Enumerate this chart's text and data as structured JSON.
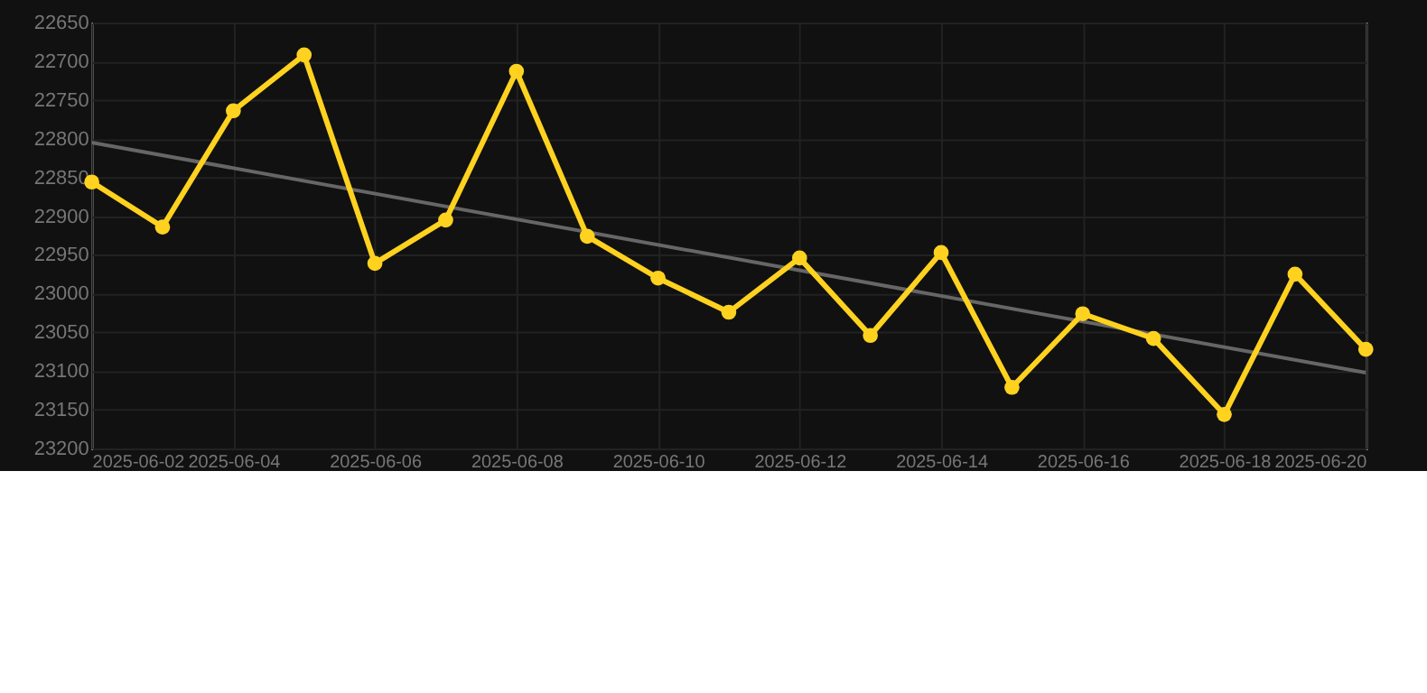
{
  "chart_data": {
    "type": "line",
    "x": [
      "2025-06-02",
      "2025-06-03",
      "2025-06-04",
      "2025-06-05",
      "2025-06-06",
      "2025-06-07",
      "2025-06-08",
      "2025-06-09",
      "2025-06-10",
      "2025-06-11",
      "2025-06-12",
      "2025-06-13",
      "2025-06-14",
      "2025-06-15",
      "2025-06-16",
      "2025-06-17",
      "2025-06-18",
      "2025-06-19",
      "2025-06-20"
    ],
    "series": [
      {
        "color": "#ffd21f",
        "marker": "circle",
        "values": [
          22856,
          22914,
          22764,
          22692,
          22961,
          22905,
          22713,
          22926,
          22980,
          23024,
          22954,
          23054,
          22947,
          23121,
          23026,
          23058,
          23156,
          22975,
          23072
        ]
      },
      {
        "type": "line",
        "color": "#666666",
        "marker": "none",
        "x": [
          "2025-06-02",
          "2025-06-20"
        ],
        "values": [
          22805,
          23102
        ]
      }
    ],
    "ylim": [
      23200,
      22650
    ],
    "yticks": [
      22650,
      22700,
      22750,
      22800,
      22850,
      22900,
      22950,
      23000,
      23050,
      23100,
      23150,
      23200
    ],
    "xlim": [
      "2025-06-02",
      "2025-06-20"
    ],
    "xticks": [
      "2025-06-02",
      "2025-06-04",
      "2025-06-06",
      "2025-06-08",
      "2025-06-10",
      "2025-06-12",
      "2025-06-14",
      "2025-06-16",
      "2025-06-18",
      "2025-06-20"
    ],
    "grid": true
  }
}
